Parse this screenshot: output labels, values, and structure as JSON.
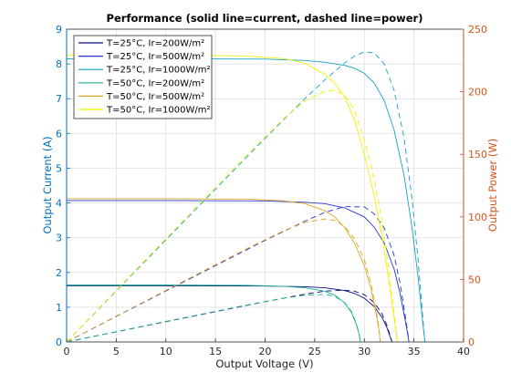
{
  "chart_data": {
    "type": "line",
    "title": "Performance (solid line=current, dashed line=power)",
    "xlabel": "Output Voltage (V)",
    "ylabel_left": "Output Current (A)",
    "ylabel_right": "Output Power (W)",
    "xlim": [
      0,
      40
    ],
    "ylim_left": [
      0,
      9
    ],
    "ylim_right": [
      0,
      250
    ],
    "x_ticks": [
      0,
      5,
      10,
      15,
      20,
      25,
      30,
      35,
      40
    ],
    "y_ticks_left": [
      0,
      1,
      2,
      3,
      4,
      5,
      6,
      7,
      8,
      9
    ],
    "y_ticks_right": [
      0,
      50,
      100,
      150,
      200,
      250
    ],
    "grid": true,
    "legend_position": "top-left",
    "colors": {
      "left_axis": "#0072BD",
      "right_axis": "#D95319"
    },
    "series": [
      {
        "name": "T=25°C, Ir=200W/m²",
        "color": "#0b0b82",
        "current": [
          [
            0,
            1.62
          ],
          [
            10,
            1.62
          ],
          [
            20,
            1.61
          ],
          [
            24,
            1.59
          ],
          [
            26,
            1.56
          ],
          [
            28,
            1.48
          ],
          [
            29,
            1.4
          ],
          [
            30,
            1.26
          ],
          [
            31,
            1.02
          ],
          [
            31.8,
            0.7
          ],
          [
            32.3,
            0.4
          ],
          [
            32.6,
            0.15
          ],
          [
            32.8,
            0
          ]
        ],
        "power": [
          [
            0,
            0
          ],
          [
            10,
            16.2
          ],
          [
            20,
            32.2
          ],
          [
            24,
            38.2
          ],
          [
            26,
            40.6
          ],
          [
            28,
            41.4
          ],
          [
            29,
            40.6
          ],
          [
            30,
            37.8
          ],
          [
            31,
            31.6
          ],
          [
            31.8,
            22.3
          ],
          [
            32.3,
            12.9
          ],
          [
            32.6,
            4.9
          ],
          [
            32.8,
            0
          ]
        ]
      },
      {
        "name": "T=25°C, Ir=500W/m²",
        "color": "#2437d6",
        "current": [
          [
            0,
            4.07
          ],
          [
            10,
            4.07
          ],
          [
            20,
            4.06
          ],
          [
            24,
            4.02
          ],
          [
            26,
            3.98
          ],
          [
            28,
            3.86
          ],
          [
            30,
            3.6
          ],
          [
            31,
            3.3
          ],
          [
            32,
            2.85
          ],
          [
            33,
            2.1
          ],
          [
            33.6,
            1.4
          ],
          [
            34,
            0.8
          ],
          [
            34.3,
            0.35
          ],
          [
            34.5,
            0
          ]
        ],
        "power": [
          [
            0,
            0
          ],
          [
            10,
            40.7
          ],
          [
            20,
            81.2
          ],
          [
            24,
            96.5
          ],
          [
            26,
            103.5
          ],
          [
            28,
            108.1
          ],
          [
            30,
            108
          ],
          [
            31,
            102.3
          ],
          [
            32,
            91.2
          ],
          [
            33,
            69.3
          ],
          [
            33.6,
            47
          ],
          [
            34,
            27.2
          ],
          [
            34.3,
            12
          ],
          [
            34.5,
            0
          ]
        ]
      },
      {
        "name": "T=25°C, Ir=1000W/m²",
        "color": "#14a4c3",
        "current": [
          [
            0,
            8.15
          ],
          [
            10,
            8.15
          ],
          [
            20,
            8.14
          ],
          [
            24,
            8.1
          ],
          [
            26,
            8.05
          ],
          [
            28,
            7.96
          ],
          [
            29,
            7.88
          ],
          [
            30,
            7.73
          ],
          [
            31,
            7.45
          ],
          [
            32,
            6.95
          ],
          [
            33,
            6.1
          ],
          [
            34,
            4.8
          ],
          [
            34.8,
            3.3
          ],
          [
            35.4,
            1.9
          ],
          [
            35.8,
            0.8
          ],
          [
            36.1,
            0
          ]
        ],
        "power": [
          [
            0,
            0
          ],
          [
            10,
            81.5
          ],
          [
            20,
            162.8
          ],
          [
            24,
            194.4
          ],
          [
            26,
            209.3
          ],
          [
            28,
            222.9
          ],
          [
            29,
            228.5
          ],
          [
            30,
            231.9
          ],
          [
            31,
            231
          ],
          [
            32,
            222.4
          ],
          [
            33,
            201.3
          ],
          [
            34,
            163.2
          ],
          [
            34.8,
            114.8
          ],
          [
            35.4,
            67.3
          ],
          [
            35.8,
            28.6
          ],
          [
            36.1,
            0
          ]
        ]
      },
      {
        "name": "T=50°C, Ir=200W/m²",
        "color": "#1eb38e",
        "current": [
          [
            0,
            1.64
          ],
          [
            10,
            1.64
          ],
          [
            18,
            1.63
          ],
          [
            22,
            1.6
          ],
          [
            24,
            1.56
          ],
          [
            26,
            1.46
          ],
          [
            27,
            1.35
          ],
          [
            28,
            1.13
          ],
          [
            28.7,
            0.85
          ],
          [
            29.2,
            0.5
          ],
          [
            29.5,
            0.2
          ],
          [
            29.6,
            0
          ]
        ],
        "power": [
          [
            0,
            0
          ],
          [
            10,
            16.4
          ],
          [
            18,
            29.3
          ],
          [
            22,
            35.2
          ],
          [
            24,
            37.4
          ],
          [
            26,
            38
          ],
          [
            27,
            36.5
          ],
          [
            28,
            31.6
          ],
          [
            28.7,
            24.4
          ],
          [
            29.2,
            14.6
          ],
          [
            29.5,
            5.9
          ],
          [
            29.6,
            0
          ]
        ]
      },
      {
        "name": "T=50°C, Ir=500W/m²",
        "color": "#e1a524",
        "current": [
          [
            0,
            4.12
          ],
          [
            10,
            4.12
          ],
          [
            18,
            4.11
          ],
          [
            22,
            4.06
          ],
          [
            24,
            3.98
          ],
          [
            26,
            3.78
          ],
          [
            27,
            3.6
          ],
          [
            28,
            3.3
          ],
          [
            29,
            2.85
          ],
          [
            30,
            2.2
          ],
          [
            30.7,
            1.5
          ],
          [
            31.2,
            0.8
          ],
          [
            31.5,
            0.3
          ],
          [
            31.6,
            0
          ]
        ],
        "power": [
          [
            0,
            0
          ],
          [
            10,
            41.2
          ],
          [
            18,
            74
          ],
          [
            22,
            89.3
          ],
          [
            24,
            95.5
          ],
          [
            26,
            98.3
          ],
          [
            27,
            97.2
          ],
          [
            28,
            92.4
          ],
          [
            29,
            82.7
          ],
          [
            30,
            66
          ],
          [
            30.7,
            46.1
          ],
          [
            31.2,
            25
          ],
          [
            31.5,
            9.5
          ],
          [
            31.6,
            0
          ]
        ]
      },
      {
        "name": "T=50°C, Ir=1000W/m²",
        "color": "#f2f200",
        "current": [
          [
            0,
            8.25
          ],
          [
            10,
            8.25
          ],
          [
            18,
            8.23
          ],
          [
            22,
            8.15
          ],
          [
            24,
            8.02
          ],
          [
            26,
            7.7
          ],
          [
            27,
            7.45
          ],
          [
            28,
            7.05
          ],
          [
            29,
            6.4
          ],
          [
            30,
            5.4
          ],
          [
            31,
            4.2
          ],
          [
            31.8,
            3.0
          ],
          [
            32.4,
            1.9
          ],
          [
            32.9,
            0.9
          ],
          [
            33.2,
            0.3
          ],
          [
            33.3,
            0
          ]
        ],
        "power": [
          [
            0,
            0
          ],
          [
            10,
            82.5
          ],
          [
            18,
            148.1
          ],
          [
            22,
            179.3
          ],
          [
            24,
            192.5
          ],
          [
            26,
            200.2
          ],
          [
            27,
            201.2
          ],
          [
            28,
            197.4
          ],
          [
            29,
            185.6
          ],
          [
            30,
            162
          ],
          [
            31,
            130.2
          ],
          [
            31.8,
            95.4
          ],
          [
            32.4,
            61.6
          ],
          [
            32.9,
            29.6
          ],
          [
            33.2,
            10
          ],
          [
            33.3,
            0
          ]
        ]
      }
    ]
  }
}
